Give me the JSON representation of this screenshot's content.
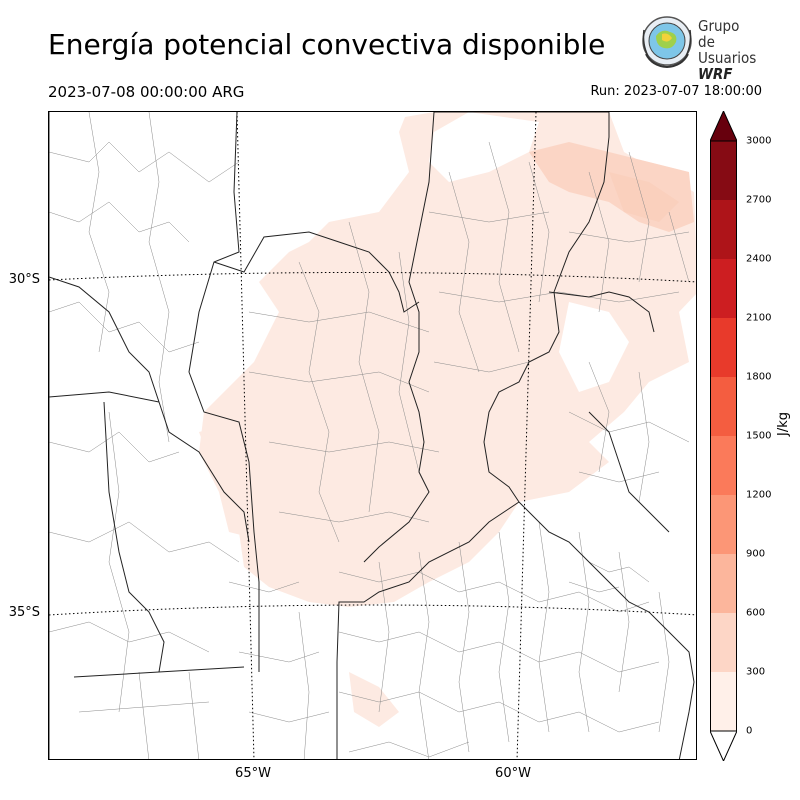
{
  "header": {
    "title": "Energía potencial convectiva disponible",
    "valid_time": "2023-07-08 00:00:00 ARG",
    "run_time": "Run: 2023-07-07 18:00:00"
  },
  "logo": {
    "line1": "Grupo de",
    "line2": "Usuarios",
    "line3": "WRF"
  },
  "map": {
    "lat_labels": [
      "30°S",
      "35°S"
    ],
    "lon_labels": [
      "65°W",
      "60°W"
    ],
    "field_colors": {
      "faint": "#fdeae2",
      "light": "#fbd5c5",
      "border": "#222222",
      "department": "#8a8a8a",
      "gridline": "#000000"
    }
  },
  "colorbar": {
    "label": "J/kg",
    "ticks": [
      "0",
      "300",
      "600",
      "900",
      "1200",
      "1500",
      "1800",
      "2100",
      "2400",
      "2700",
      "3000"
    ],
    "colors": [
      "#fff0e9",
      "#fdd6c6",
      "#fcb69c",
      "#fc9676",
      "#fb7a5a",
      "#f45d40",
      "#e83a2b",
      "#cd1e21",
      "#ae1419",
      "#860b14",
      "#67000d"
    ]
  }
}
